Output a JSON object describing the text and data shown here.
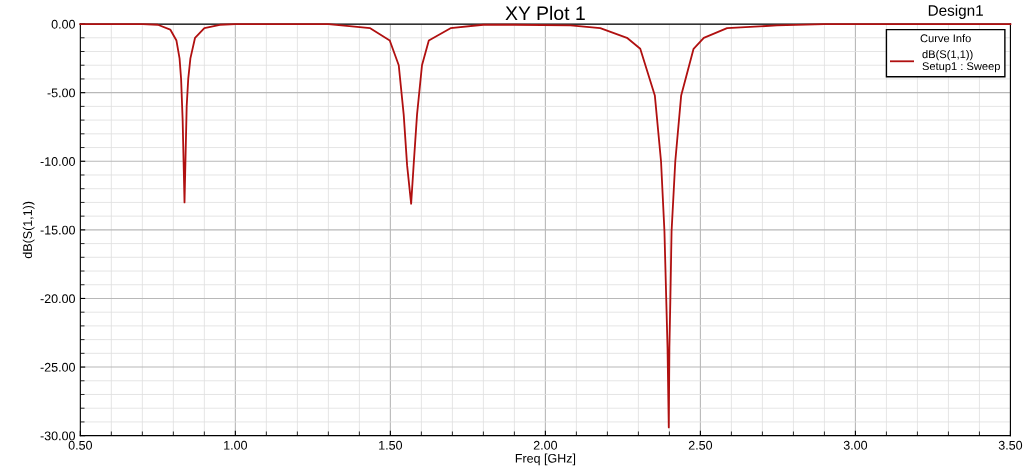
{
  "chart_data": {
    "type": "line",
    "title": "XY Plot 1",
    "xlabel": "Freq [GHz]",
    "ylabel": "dB(S(1,1))",
    "legend_title": "Curve Info",
    "annotations": [
      "Design1"
    ],
    "xlim": [
      0.5,
      3.5
    ],
    "ylim": [
      -30,
      0
    ],
    "xticks": [
      {
        "value": 0.5,
        "label": "0.50"
      },
      {
        "value": 1.0,
        "label": "1.00"
      },
      {
        "value": 1.5,
        "label": "1.50"
      },
      {
        "value": 2.0,
        "label": "2.00"
      },
      {
        "value": 2.5,
        "label": "2.50"
      },
      {
        "value": 3.0,
        "label": "3.00"
      },
      {
        "value": 3.5,
        "label": "3.50"
      }
    ],
    "yticks": [
      {
        "value": -30,
        "label": "-30.00"
      },
      {
        "value": -25,
        "label": "-25.00"
      },
      {
        "value": -20,
        "label": "-20.00"
      },
      {
        "value": -15,
        "label": "-15.00"
      },
      {
        "value": -10,
        "label": "-10.00"
      },
      {
        "value": -5,
        "label": "-5.00"
      },
      {
        "value": 0,
        "label": "0.00"
      }
    ],
    "grid": true,
    "legend": "top right",
    "marker": "none",
    "line_style": "solid",
    "series": [
      {
        "name": "dB(S(1,1))\nSetup1 : Sweep",
        "color": "#b01010",
        "x": [
          0.5,
          0.7,
          0.75,
          0.79,
          0.81,
          0.82,
          0.825,
          0.83,
          0.833,
          0.836,
          0.839,
          0.843,
          0.848,
          0.855,
          0.87,
          0.9,
          0.95,
          1.0,
          1.3,
          1.435,
          1.498,
          1.527,
          1.543,
          1.554,
          1.567,
          1.575,
          1.586,
          1.602,
          1.624,
          1.694,
          1.8,
          1.9,
          2.081,
          2.177,
          2.263,
          2.306,
          2.353,
          2.373,
          2.384,
          2.39,
          2.394,
          2.398,
          2.4,
          2.403,
          2.407,
          2.419,
          2.438,
          2.478,
          2.511,
          2.586,
          2.747,
          2.9,
          3.5
        ],
        "values": [
          0,
          0,
          -0.05,
          -0.4,
          -1.2,
          -2.5,
          -4,
          -7,
          -10,
          -13.0,
          -10,
          -6,
          -4,
          -2.5,
          -1.0,
          -0.3,
          -0.05,
          0,
          0,
          -0.3,
          -1.2,
          -3.0,
          -6.6,
          -10.3,
          -13.1,
          -10.3,
          -6.6,
          -3.0,
          -1.2,
          -0.3,
          -0.05,
          -0.05,
          -0.1,
          -0.3,
          -1.0,
          -1.8,
          -5.2,
          -10.0,
          -15.1,
          -20.2,
          -23.6,
          -29.4,
          -23.6,
          -20.2,
          -15.1,
          -10.0,
          -5.2,
          -1.8,
          -1.0,
          -0.3,
          -0.1,
          0,
          0
        ]
      }
    ]
  }
}
